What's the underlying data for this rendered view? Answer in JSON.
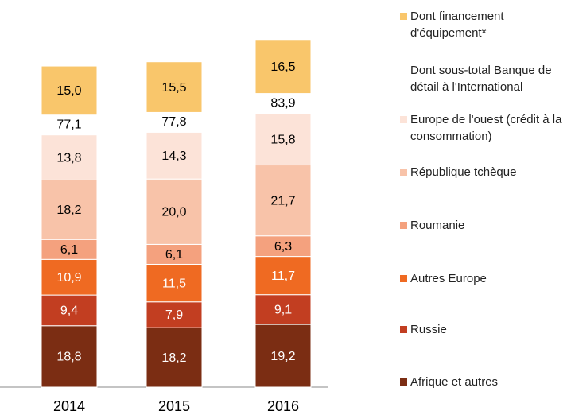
{
  "chart_data": {
    "type": "stacked_bar",
    "categories": [
      "2014",
      "2015",
      "2016"
    ],
    "series": [
      {
        "name": "Afrique et autres",
        "color": "#7b2d13",
        "values": [
          18.8,
          18.2,
          19.2
        ],
        "value_labels": [
          "18,8",
          "18,2",
          "19,2"
        ]
      },
      {
        "name": "Russie",
        "color": "#c23e21",
        "values": [
          9.4,
          7.9,
          9.1
        ],
        "value_labels": [
          "9,4",
          "7,9",
          "9,1"
        ]
      },
      {
        "name": "Autres Europe",
        "color": "#ef6a22",
        "values": [
          10.9,
          11.5,
          11.7
        ],
        "value_labels": [
          "10,9",
          "11,5",
          "11,7"
        ]
      },
      {
        "name": "Roumanie",
        "color": "#f4a17e",
        "values": [
          6.1,
          6.1,
          6.3
        ],
        "value_labels": [
          "6,1",
          "6,1",
          "6,3"
        ]
      },
      {
        "name": "République tchèque",
        "color": "#f8c3a9",
        "values": [
          18.2,
          20.0,
          21.7
        ],
        "value_labels": [
          "18,2",
          "20,0",
          "21,7"
        ]
      },
      {
        "name": "Europe de l'ouest (crédit à la consommation)",
        "color": "#fce3d8",
        "values": [
          13.8,
          14.3,
          15.8
        ],
        "value_labels": [
          "13,8",
          "14,3",
          "15,8"
        ]
      }
    ],
    "subtotal": {
      "name": "Dont sous-total Banque de détail à l'International",
      "values": [
        77.1,
        77.8,
        83.9
      ],
      "value_labels": [
        "77,1",
        "77,8",
        "83,9"
      ]
    },
    "top_series": {
      "name": "Dont financement d'équipement*",
      "color": "#f9c66b",
      "values": [
        15.0,
        15.5,
        16.5
      ],
      "value_labels": [
        "15,0",
        "15,5",
        "16,5"
      ]
    }
  }
}
